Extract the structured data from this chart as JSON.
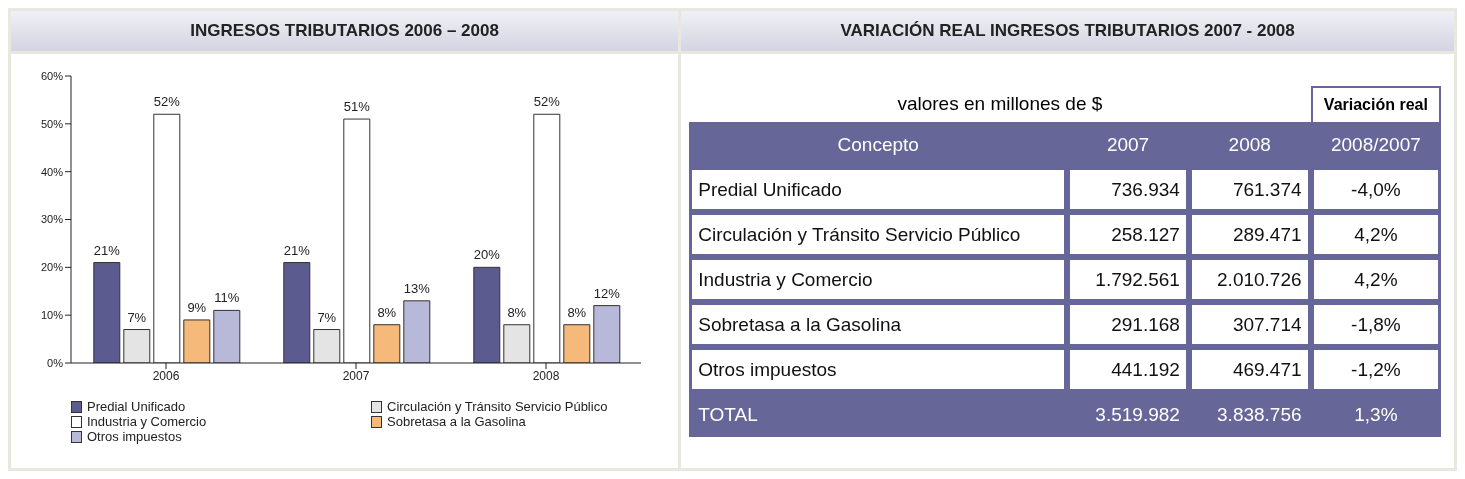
{
  "chart_data": [
    {
      "type": "bar",
      "title": "INGRESOS TRIBUTARIOS 2006 – 2008",
      "categories": [
        "2006",
        "2007",
        "2008"
      ],
      "series": [
        {
          "name": "Predial Unificado",
          "color": "#5b5b8f",
          "values": [
            21,
            21,
            20
          ],
          "value_labels": [
            "21%",
            "21%",
            "20%"
          ]
        },
        {
          "name": "Circulación y Tránsito Servicio Público",
          "color": "#e4e4e4",
          "values": [
            7,
            7,
            8
          ],
          "value_labels": [
            "7%",
            "7%",
            "8%"
          ]
        },
        {
          "name": "Industria y Comercio",
          "color": "#ffffff",
          "values": [
            52,
            51,
            52
          ],
          "value_labels": [
            "52%",
            "51%",
            "52%"
          ]
        },
        {
          "name": "Sobretasa a la Gasolina",
          "color": "#f5b97a",
          "values": [
            9,
            8,
            8
          ],
          "value_labels": [
            "9%",
            "8%",
            "8%"
          ]
        },
        {
          "name": "Otros impuestos",
          "color": "#b8b8d8",
          "values": [
            11,
            13,
            12
          ],
          "value_labels": [
            "11%",
            "13%",
            "12%"
          ]
        }
      ],
      "ylim": [
        0,
        60
      ],
      "yticks": [
        {
          "value": 0,
          "label": "0%"
        },
        {
          "value": 10,
          "label": "10%"
        },
        {
          "value": 20,
          "label": "20%"
        },
        {
          "value": 30,
          "label": "30%"
        },
        {
          "value": 40,
          "label": "40%"
        },
        {
          "value": 50,
          "label": "50%"
        },
        {
          "value": 60,
          "label": "60%"
        }
      ],
      "legend": "bottom"
    },
    {
      "type": "other",
      "title": "VARIACIÓN REAL INGRESOS TRIBUTARIOS 2007 - 2008",
      "subtitle": "valores en millones de $",
      "annotations": [
        "Variación real"
      ],
      "categories": [
        "Concepto",
        "2007",
        "2008",
        "2008/2007"
      ],
      "y_categories": [
        "Predial Unificado",
        "Circulación y Tránsito Servicio Público",
        "Industria y Comercio",
        "Sobretasa a la Gasolina",
        "Otros impuestos",
        "TOTAL"
      ],
      "cell_labels": [
        [
          "736.934",
          "761.374",
          "-4,0%"
        ],
        [
          "258.127",
          "289.471",
          "4,2%"
        ],
        [
          "1.792.561",
          "2.010.726",
          "4,2%"
        ],
        [
          "291.168",
          "307.714",
          "-1,8%"
        ],
        [
          "441.192",
          "469.471",
          "-1,2%"
        ],
        [
          "3.519.982",
          "3.838.756",
          "1,3%"
        ]
      ]
    }
  ]
}
